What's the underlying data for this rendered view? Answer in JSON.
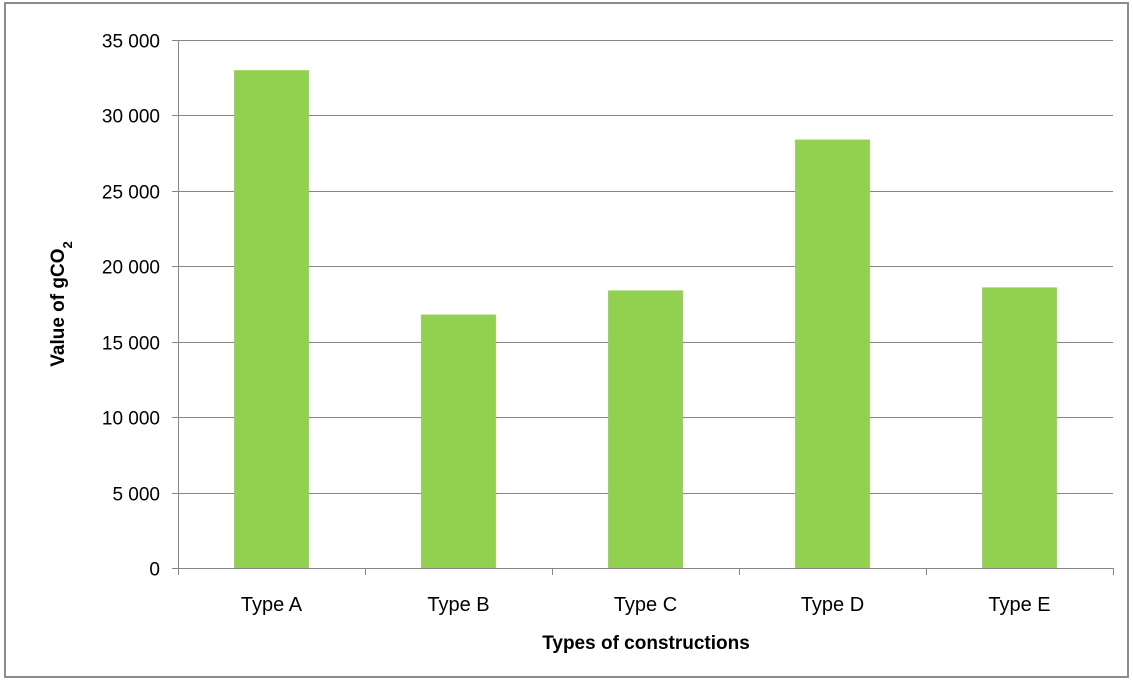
{
  "chart_data": {
    "type": "bar",
    "xlabel": "Types of constructions",
    "ylabel": "Value of gCO",
    "ylabel_subscript": "2",
    "categories": [
      "Type A",
      "Type B",
      "Type C",
      "Type D",
      "Type E"
    ],
    "values": [
      33000,
      16800,
      18400,
      28400,
      18600
    ],
    "ylim": [
      0,
      35000
    ],
    "yticks": [
      0,
      5000,
      10000,
      15000,
      20000,
      25000,
      30000,
      35000
    ],
    "ytick_labels": [
      "0",
      "5 000",
      "10 000",
      "15 000",
      "20 000",
      "25 000",
      "30 000",
      "35 000"
    ],
    "grid": true,
    "legend": "none",
    "bar_color": "#92D050",
    "grid_color": "#868686"
  }
}
